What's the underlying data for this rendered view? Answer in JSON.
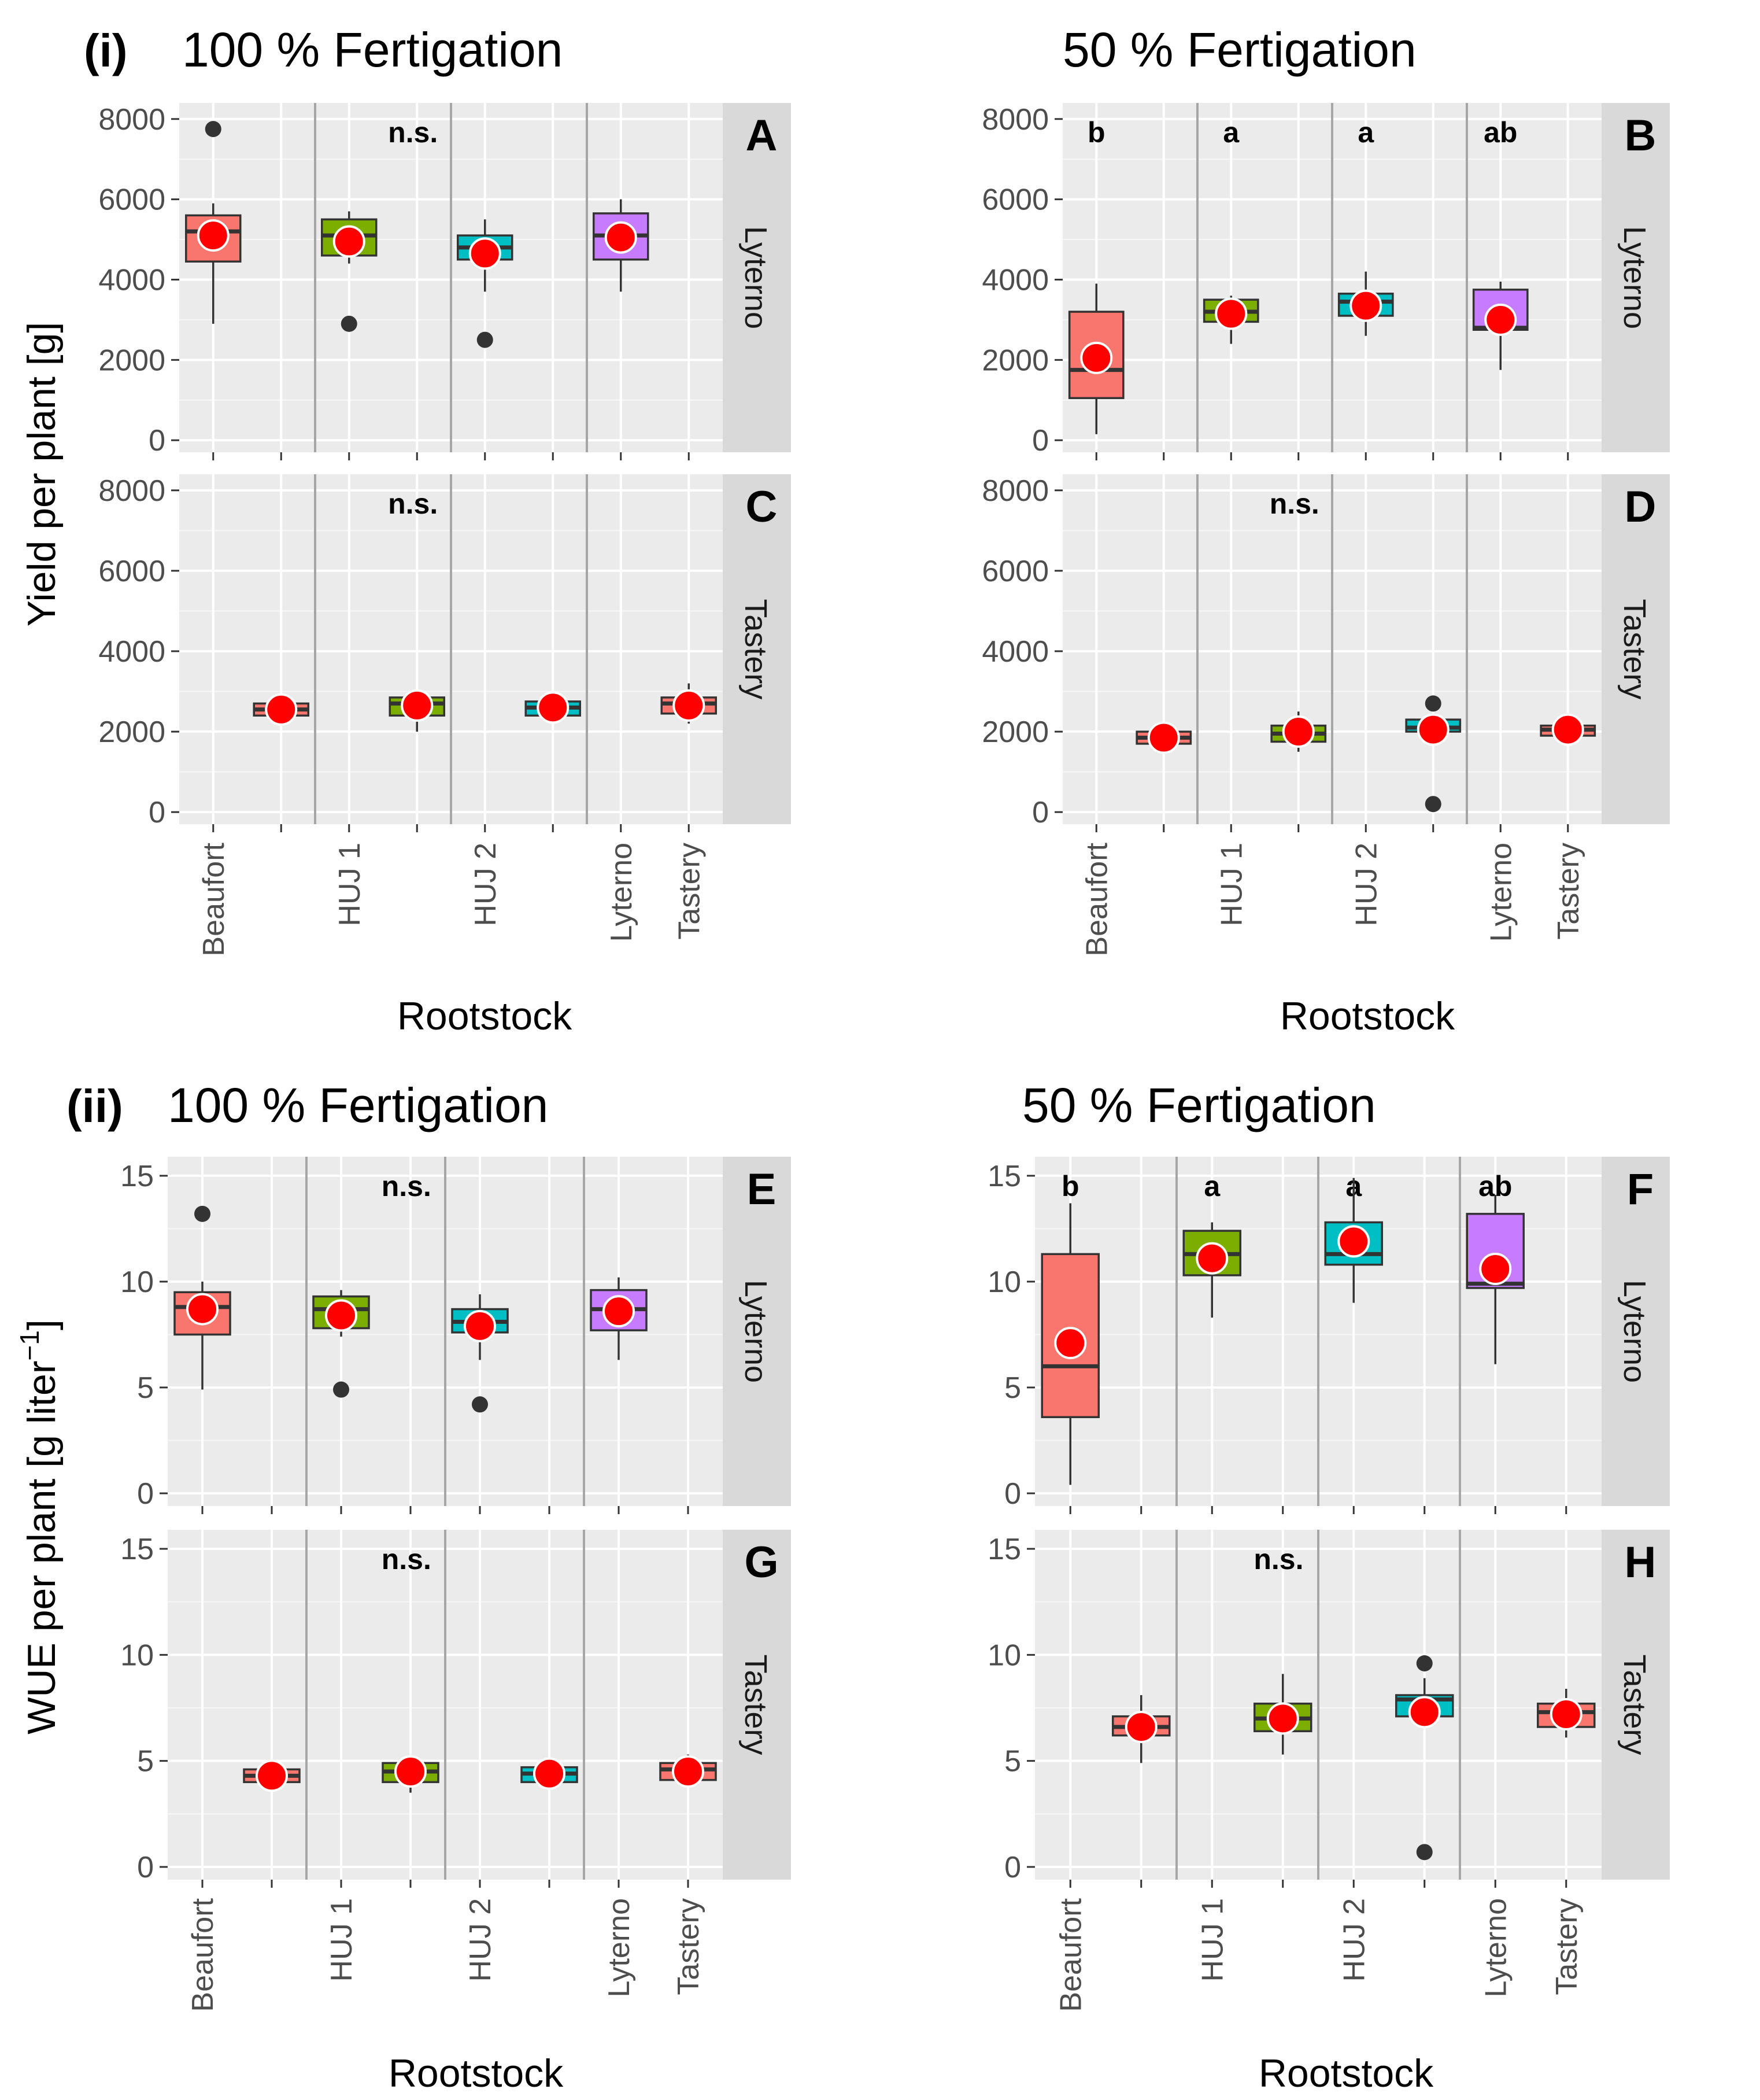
{
  "figure": {
    "section_i_label": "(i)",
    "section_ii_label": "(ii)",
    "col_titles": [
      "100 % Fertigation",
      "50 % Fertigation"
    ],
    "yield_ylabel": "Yield per plant [g]",
    "wue_ylabel": "WUE per plant [g  liter",
    "wue_ylabel_sup": "−1",
    "wue_ylabel_end": "]",
    "xlabel": "Rootstock",
    "strip_top": "Lyterno",
    "strip_bottom": "Tastery",
    "x_tick_labels": [
      "Beaufort",
      "HUJ 1",
      "HUJ 2",
      "Lyterno",
      "Tastery"
    ]
  },
  "colors": {
    "Beaufort": "#F8766D",
    "HUJ 1": "#7CAE00",
    "HUJ 2": "#00BFC4",
    "Lyterno": "#C77CFF",
    "Tastery": "#F8766D",
    "mean_point": "#FF0000",
    "panel_bg": "#EBEBEB",
    "strip_bg": "#D9D9D9"
  },
  "chart_data": [
    {
      "type": "box",
      "panel": "A",
      "title": "100 % Fertigation",
      "strip": "Lyterno",
      "ylabel": "Yield per plant [g]",
      "ylim": [
        -300,
        8400
      ],
      "yticks": [
        0,
        2000,
        4000,
        6000,
        8000
      ],
      "sig_label": "n.s.",
      "groups": [
        {
          "category": "Beaufort",
          "slot": 0,
          "color": "#F8766D",
          "whisker_low": 2900,
          "q1": 4450,
          "median": 5200,
          "q3": 5600,
          "whisker_high": 5900,
          "mean": 5100,
          "outliers": [
            7750
          ]
        },
        {
          "category": "HUJ 1",
          "slot": 2,
          "color": "#7CAE00",
          "whisker_low": 4400,
          "q1": 4600,
          "median": 5100,
          "q3": 5500,
          "whisker_high": 5700,
          "mean": 4950,
          "outliers": [
            2900
          ]
        },
        {
          "category": "HUJ 2",
          "slot": 4,
          "color": "#00BFC4",
          "whisker_low": 3700,
          "q1": 4500,
          "median": 4800,
          "q3": 5100,
          "whisker_high": 5500,
          "mean": 4650,
          "outliers": [
            2500
          ]
        },
        {
          "category": "Lyterno",
          "slot": 6,
          "color": "#C77CFF",
          "whisker_low": 3700,
          "q1": 4500,
          "median": 5100,
          "q3": 5650,
          "whisker_high": 6000,
          "mean": 5050,
          "outliers": []
        }
      ]
    },
    {
      "type": "box",
      "panel": "B",
      "title": "50 % Fertigation",
      "strip": "Lyterno",
      "ylabel": "Yield per plant [g]",
      "ylim": [
        -300,
        8400
      ],
      "yticks": [
        0,
        2000,
        4000,
        6000,
        8000
      ],
      "letters": [
        "b",
        "a",
        "a",
        "ab"
      ],
      "groups": [
        {
          "category": "Beaufort",
          "slot": 0,
          "color": "#F8766D",
          "whisker_low": 150,
          "q1": 1050,
          "median": 1750,
          "q3": 3200,
          "whisker_high": 3900,
          "mean": 2050,
          "outliers": []
        },
        {
          "category": "HUJ 1",
          "slot": 2,
          "color": "#7CAE00",
          "whisker_low": 2400,
          "q1": 2950,
          "median": 3200,
          "q3": 3500,
          "whisker_high": 3600,
          "mean": 3150,
          "outliers": []
        },
        {
          "category": "HUJ 2",
          "slot": 4,
          "color": "#00BFC4",
          "whisker_low": 2600,
          "q1": 3100,
          "median": 3450,
          "q3": 3650,
          "whisker_high": 4200,
          "mean": 3350,
          "outliers": []
        },
        {
          "category": "Lyterno",
          "slot": 6,
          "color": "#C77CFF",
          "whisker_low": 1750,
          "q1": 2750,
          "median": 2800,
          "q3": 3750,
          "whisker_high": 3950,
          "mean": 3000,
          "outliers": []
        }
      ]
    },
    {
      "type": "box",
      "panel": "C",
      "title": "100 % Fertigation",
      "strip": "Tastery",
      "ylabel": "Yield per plant [g]",
      "ylim": [
        -300,
        8400
      ],
      "yticks": [
        0,
        2000,
        4000,
        6000,
        8000
      ],
      "sig_label": "n.s.",
      "groups": [
        {
          "category": "Beaufort",
          "slot": 1,
          "color": "#F8766D",
          "whisker_low": 2300,
          "q1": 2400,
          "median": 2550,
          "q3": 2700,
          "whisker_high": 2800,
          "mean": 2550,
          "outliers": []
        },
        {
          "category": "HUJ 1",
          "slot": 3,
          "color": "#7CAE00",
          "whisker_low": 2000,
          "q1": 2400,
          "median": 2700,
          "q3": 2850,
          "whisker_high": 2900,
          "mean": 2650,
          "outliers": []
        },
        {
          "category": "HUJ 2",
          "slot": 5,
          "color": "#00BFC4",
          "whisker_low": 2400,
          "q1": 2400,
          "median": 2600,
          "q3": 2750,
          "whisker_high": 2800,
          "mean": 2600,
          "outliers": []
        },
        {
          "category": "Tastery",
          "slot": 7,
          "color": "#F8766D",
          "whisker_low": 2200,
          "q1": 2450,
          "median": 2700,
          "q3": 2850,
          "whisker_high": 3200,
          "mean": 2650,
          "outliers": []
        }
      ]
    },
    {
      "type": "box",
      "panel": "D",
      "title": "50 % Fertigation",
      "strip": "Tastery",
      "ylabel": "Yield per plant [g]",
      "ylim": [
        -300,
        8400
      ],
      "yticks": [
        0,
        2000,
        4000,
        6000,
        8000
      ],
      "sig_label": "n.s.",
      "groups": [
        {
          "category": "Beaufort",
          "slot": 1,
          "color": "#F8766D",
          "whisker_low": 1500,
          "q1": 1700,
          "median": 1850,
          "q3": 2000,
          "whisker_high": 2150,
          "mean": 1850,
          "outliers": []
        },
        {
          "category": "HUJ 1",
          "slot": 3,
          "color": "#7CAE00",
          "whisker_low": 1500,
          "q1": 1750,
          "median": 1950,
          "q3": 2150,
          "whisker_high": 2500,
          "mean": 2000,
          "outliers": []
        },
        {
          "category": "HUJ 2",
          "slot": 5,
          "color": "#00BFC4",
          "whisker_low": 1850,
          "q1": 2000,
          "median": 2100,
          "q3": 2300,
          "whisker_high": 2350,
          "mean": 2050,
          "outliers": [
            2700,
            200
          ]
        },
        {
          "category": "Tastery",
          "slot": 7,
          "color": "#F8766D",
          "whisker_low": 1850,
          "q1": 1900,
          "median": 2050,
          "q3": 2150,
          "whisker_high": 2200,
          "mean": 2050,
          "outliers": []
        }
      ]
    },
    {
      "type": "box",
      "panel": "E",
      "title": "100 % Fertigation",
      "strip": "Lyterno",
      "ylabel": "WUE per plant [g liter^-1]",
      "ylim": [
        -0.6,
        15.9
      ],
      "yticks": [
        0,
        5,
        10,
        15
      ],
      "sig_label": "n.s.",
      "groups": [
        {
          "category": "Beaufort",
          "slot": 0,
          "color": "#F8766D",
          "whisker_low": 4.9,
          "q1": 7.5,
          "median": 8.8,
          "q3": 9.5,
          "whisker_high": 10.0,
          "mean": 8.7,
          "outliers": [
            13.2
          ]
        },
        {
          "category": "HUJ 1",
          "slot": 2,
          "color": "#7CAE00",
          "whisker_low": 7.4,
          "q1": 7.8,
          "median": 8.7,
          "q3": 9.3,
          "whisker_high": 9.6,
          "mean": 8.4,
          "outliers": [
            4.9
          ]
        },
        {
          "category": "HUJ 2",
          "slot": 4,
          "color": "#00BFC4",
          "whisker_low": 6.3,
          "q1": 7.6,
          "median": 8.1,
          "q3": 8.7,
          "whisker_high": 9.4,
          "mean": 7.9,
          "outliers": [
            4.2
          ]
        },
        {
          "category": "Lyterno",
          "slot": 6,
          "color": "#C77CFF",
          "whisker_low": 6.3,
          "q1": 7.7,
          "median": 8.7,
          "q3": 9.6,
          "whisker_high": 10.2,
          "mean": 8.6,
          "outliers": []
        }
      ]
    },
    {
      "type": "box",
      "panel": "F",
      "title": "50 % Fertigation",
      "strip": "Lyterno",
      "ylabel": "WUE per plant [g liter^-1]",
      "ylim": [
        -0.6,
        15.9
      ],
      "yticks": [
        0,
        5,
        10,
        15
      ],
      "letters": [
        "b",
        "a",
        "a",
        "ab"
      ],
      "groups": [
        {
          "category": "Beaufort",
          "slot": 0,
          "color": "#F8766D",
          "whisker_low": 0.4,
          "q1": 3.6,
          "median": 6.0,
          "q3": 11.3,
          "whisker_high": 13.7,
          "mean": 7.1,
          "outliers": []
        },
        {
          "category": "HUJ 1",
          "slot": 2,
          "color": "#7CAE00",
          "whisker_low": 8.3,
          "q1": 10.3,
          "median": 11.3,
          "q3": 12.4,
          "whisker_high": 12.8,
          "mean": 11.1,
          "outliers": []
        },
        {
          "category": "HUJ 2",
          "slot": 4,
          "color": "#00BFC4",
          "whisker_low": 9.0,
          "q1": 10.8,
          "median": 11.3,
          "q3": 12.8,
          "whisker_high": 14.9,
          "mean": 11.9,
          "outliers": []
        },
        {
          "category": "Lyterno",
          "slot": 6,
          "color": "#C77CFF",
          "whisker_low": 6.1,
          "q1": 9.7,
          "median": 9.9,
          "q3": 13.2,
          "whisker_high": 14.1,
          "mean": 10.6,
          "outliers": []
        }
      ]
    },
    {
      "type": "box",
      "panel": "G",
      "title": "100 % Fertigation",
      "strip": "Tastery",
      "ylabel": "WUE per plant [g liter^-1]",
      "ylim": [
        -0.6,
        15.9
      ],
      "yticks": [
        0,
        5,
        10,
        15
      ],
      "sig_label": "n.s.",
      "groups": [
        {
          "category": "Beaufort",
          "slot": 1,
          "color": "#F8766D",
          "whisker_low": 4.0,
          "q1": 4.0,
          "median": 4.3,
          "q3": 4.6,
          "whisker_high": 4.7,
          "mean": 4.3,
          "outliers": []
        },
        {
          "category": "HUJ 1",
          "slot": 3,
          "color": "#7CAE00",
          "whisker_low": 3.5,
          "q1": 4.0,
          "median": 4.5,
          "q3": 4.9,
          "whisker_high": 5.0,
          "mean": 4.5,
          "outliers": []
        },
        {
          "category": "HUJ 2",
          "slot": 5,
          "color": "#00BFC4",
          "whisker_low": 4.0,
          "q1": 4.0,
          "median": 4.4,
          "q3": 4.7,
          "whisker_high": 4.8,
          "mean": 4.4,
          "outliers": []
        },
        {
          "category": "Tastery",
          "slot": 7,
          "color": "#F8766D",
          "whisker_low": 4.0,
          "q1": 4.1,
          "median": 4.6,
          "q3": 4.9,
          "whisker_high": 5.3,
          "mean": 4.5,
          "outliers": []
        }
      ]
    },
    {
      "type": "box",
      "panel": "H",
      "title": "50 % Fertigation",
      "strip": "Tastery",
      "ylabel": "WUE per plant [g liter^-1]",
      "ylim": [
        -0.6,
        15.9
      ],
      "yticks": [
        0,
        5,
        10,
        15
      ],
      "sig_label": "n.s.",
      "groups": [
        {
          "category": "Beaufort",
          "slot": 1,
          "color": "#F8766D",
          "whisker_low": 4.9,
          "q1": 6.2,
          "median": 6.6,
          "q3": 7.1,
          "whisker_high": 8.1,
          "mean": 6.6,
          "outliers": []
        },
        {
          "category": "HUJ 1",
          "slot": 3,
          "color": "#7CAE00",
          "whisker_low": 5.3,
          "q1": 6.4,
          "median": 7.0,
          "q3": 7.7,
          "whisker_high": 9.1,
          "mean": 7.0,
          "outliers": []
        },
        {
          "category": "HUJ 2",
          "slot": 5,
          "color": "#00BFC4",
          "whisker_low": 7.0,
          "q1": 7.1,
          "median": 7.9,
          "q3": 8.1,
          "whisker_high": 8.9,
          "mean": 7.3,
          "outliers": [
            9.6,
            0.7
          ]
        },
        {
          "category": "Tastery",
          "slot": 7,
          "color": "#F8766D",
          "whisker_low": 6.1,
          "q1": 6.6,
          "median": 7.3,
          "q3": 7.7,
          "whisker_high": 8.4,
          "mean": 7.2,
          "outliers": []
        }
      ]
    }
  ]
}
